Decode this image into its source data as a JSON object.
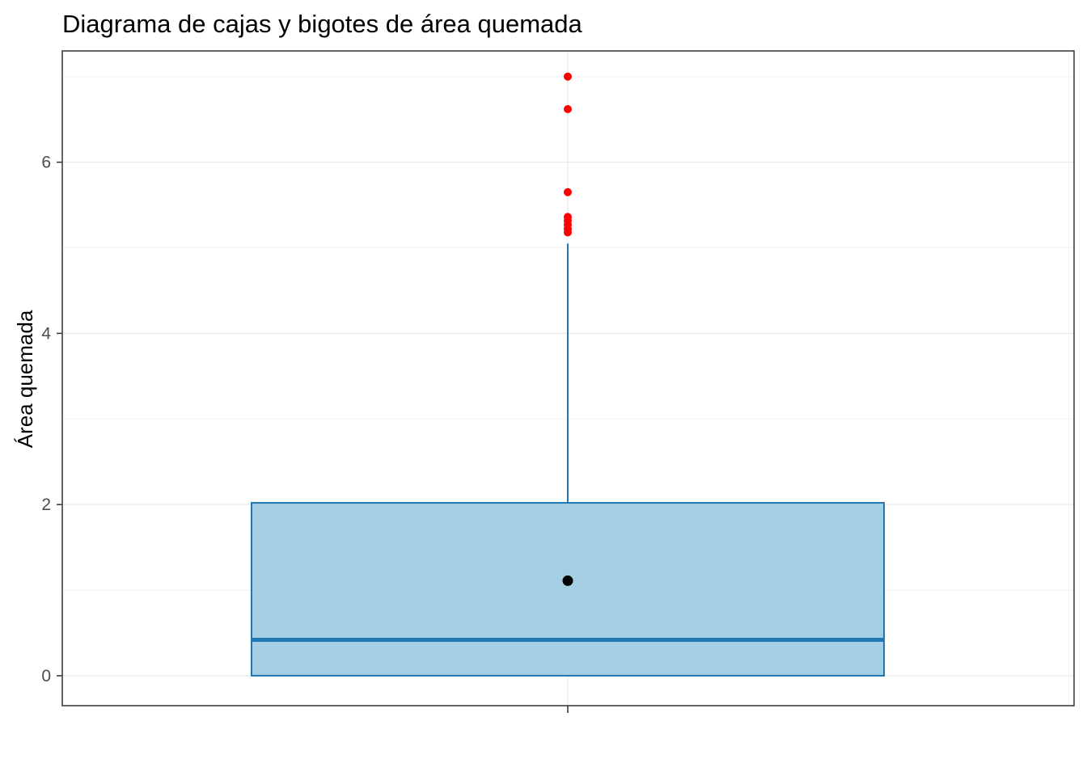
{
  "chart_data": {
    "type": "boxplot",
    "title": "Diagrama de cajas y bigotes de área quemada",
    "xlabel": "",
    "ylabel": "Área quemada",
    "ylim": [
      -0.35,
      7.3
    ],
    "yticks": [
      0,
      2,
      4,
      6
    ],
    "xticks": [
      ""
    ],
    "grid": true,
    "legend": "none",
    "box": {
      "min": 0,
      "q1": 0,
      "median": 0.42,
      "q3": 2.02,
      "whisker_high": 5.05,
      "mean": 1.11
    },
    "outliers": [
      5.18,
      5.22,
      5.27,
      5.32,
      5.36,
      5.65,
      6.62,
      7.0
    ],
    "colors": {
      "box_fill": "#a6cee3",
      "box_line": "#1f78b4",
      "outlier": "#ff0000",
      "mean": "#000000",
      "grid_major": "#ebebeb",
      "grid_minor": "#f2f2f2",
      "panel_border": "#333333"
    }
  }
}
